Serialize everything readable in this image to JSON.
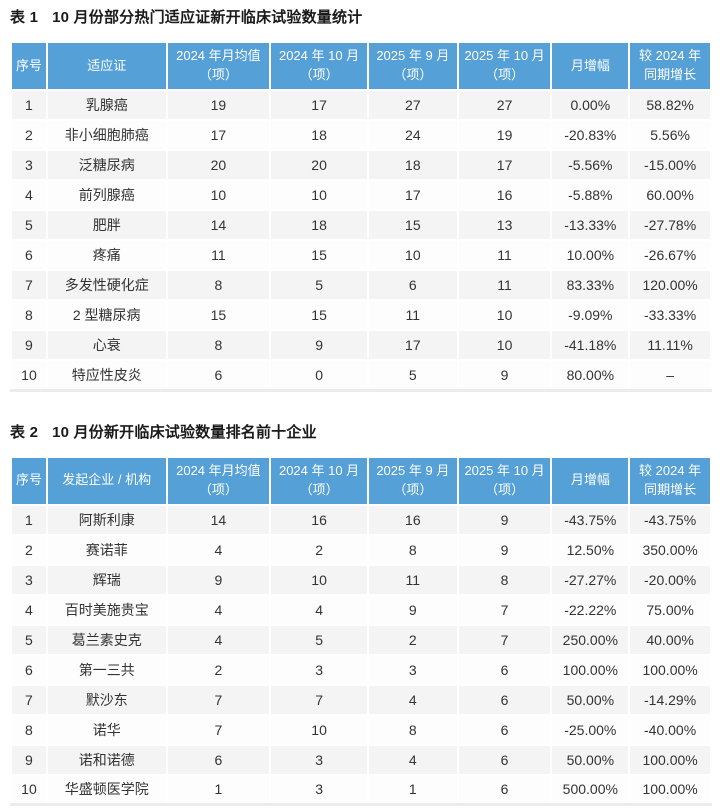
{
  "colors": {
    "header_bg": "#55a0d6",
    "header_text": "#ffffff",
    "stripe_row_bg": "#f4f4f5",
    "body_text": "#333333",
    "title_text": "#1a1a1a"
  },
  "table1": {
    "label": "表 1",
    "title": "10 月份部分热门适应证新开临床试验数量统计",
    "headers": [
      "序号",
      "适应证",
      "2024 年月均值\n（项）",
      "2024 年 10 月\n（项）",
      "2025 年 9 月\n（项）",
      "2025 年 10 月\n（项）",
      "月增幅",
      "较 2024 年\n同期增长"
    ],
    "rows": [
      [
        "1",
        "乳腺癌",
        "19",
        "17",
        "27",
        "27",
        "0.00%",
        "58.82%"
      ],
      [
        "2",
        "非小细胞肺癌",
        "17",
        "18",
        "24",
        "19",
        "-20.83%",
        "5.56%"
      ],
      [
        "3",
        "泛糖尿病",
        "20",
        "20",
        "18",
        "17",
        "-5.56%",
        "-15.00%"
      ],
      [
        "4",
        "前列腺癌",
        "10",
        "10",
        "17",
        "16",
        "-5.88%",
        "60.00%"
      ],
      [
        "5",
        "肥胖",
        "14",
        "18",
        "15",
        "13",
        "-13.33%",
        "-27.78%"
      ],
      [
        "6",
        "疼痛",
        "11",
        "15",
        "10",
        "11",
        "10.00%",
        "-26.67%"
      ],
      [
        "7",
        "多发性硬化症",
        "8",
        "5",
        "6",
        "11",
        "83.33%",
        "120.00%"
      ],
      [
        "8",
        "2 型糖尿病",
        "15",
        "15",
        "11",
        "10",
        "-9.09%",
        "-33.33%"
      ],
      [
        "9",
        "心衰",
        "8",
        "9",
        "17",
        "10",
        "-41.18%",
        "11.11%"
      ],
      [
        "10",
        "特应性皮炎",
        "6",
        "0",
        "5",
        "9",
        "80.00%",
        "–"
      ]
    ]
  },
  "table2": {
    "label": "表 2",
    "title": "10 月份新开临床试验数量排名前十企业",
    "headers": [
      "序号",
      "发起企业 / 机构",
      "2024 年月均值\n（项）",
      "2024 年 10 月\n（项）",
      "2025 年 9 月\n（项）",
      "2025 年 10 月\n（项）",
      "月增幅",
      "较 2024 年\n同期增长"
    ],
    "rows": [
      [
        "1",
        "阿斯利康",
        "14",
        "16",
        "16",
        "9",
        "-43.75%",
        "-43.75%"
      ],
      [
        "2",
        "赛诺菲",
        "4",
        "2",
        "8",
        "9",
        "12.50%",
        "350.00%"
      ],
      [
        "3",
        "辉瑞",
        "9",
        "10",
        "11",
        "8",
        "-27.27%",
        "-20.00%"
      ],
      [
        "4",
        "百时美施贵宝",
        "4",
        "4",
        "9",
        "7",
        "-22.22%",
        "75.00%"
      ],
      [
        "5",
        "葛兰素史克",
        "4",
        "5",
        "2",
        "7",
        "250.00%",
        "40.00%"
      ],
      [
        "6",
        "第一三共",
        "2",
        "3",
        "3",
        "6",
        "100.00%",
        "100.00%"
      ],
      [
        "7",
        "默沙东",
        "7",
        "7",
        "4",
        "6",
        "50.00%",
        "-14.29%"
      ],
      [
        "8",
        "诺华",
        "7",
        "10",
        "8",
        "6",
        "-25.00%",
        "-40.00%"
      ],
      [
        "9",
        "诺和诺德",
        "6",
        "3",
        "4",
        "6",
        "50.00%",
        "100.00%"
      ],
      [
        "10",
        "华盛顿医学院",
        "1",
        "3",
        "1",
        "6",
        "500.00%",
        "100.00%"
      ]
    ]
  }
}
